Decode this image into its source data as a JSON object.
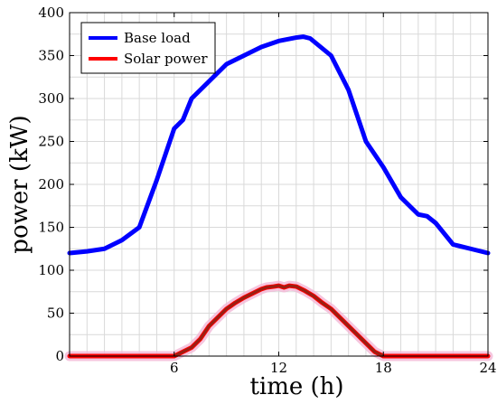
{
  "chart_data": {
    "type": "line",
    "title": "",
    "xlabel": "time (h)",
    "ylabel": "power (kW)",
    "xlim": [
      0,
      24
    ],
    "ylim": [
      0,
      400
    ],
    "xticks": [
      6,
      12,
      18,
      24
    ],
    "yticks": [
      0,
      50,
      100,
      150,
      200,
      250,
      300,
      350,
      400
    ],
    "grid": true,
    "legend_position": "top-left",
    "series": [
      {
        "name": "Base load",
        "color": "#0000ff",
        "x": [
          0,
          1,
          2,
          3,
          4,
          5,
          6,
          6.5,
          7,
          8,
          9,
          10,
          11,
          12,
          13,
          13.4,
          13.8,
          15,
          16,
          17,
          18,
          19,
          20,
          20.5,
          21,
          22,
          23,
          24
        ],
        "y": [
          120,
          122,
          125,
          135,
          150,
          205,
          265,
          275,
          300,
          320,
          340,
          350,
          360,
          367,
          371,
          372,
          370,
          350,
          310,
          250,
          220,
          185,
          165,
          163,
          155,
          130,
          125,
          120
        ]
      },
      {
        "name": "Solar power",
        "color": "#ff0000",
        "x": [
          0,
          6,
          6.5,
          7,
          7.5,
          8,
          8.5,
          9,
          9.5,
          10,
          10.5,
          11,
          11.3,
          11.7,
          12,
          12.3,
          12.6,
          13,
          13.5,
          14,
          14.5,
          15,
          15.5,
          16,
          16.5,
          17,
          17.5,
          18,
          24
        ],
        "y": [
          0,
          0,
          5,
          10,
          20,
          35,
          45,
          55,
          62,
          68,
          73,
          78,
          80,
          81,
          82,
          80,
          82,
          81,
          76,
          70,
          62,
          55,
          45,
          35,
          25,
          15,
          5,
          0,
          0
        ]
      }
    ]
  }
}
